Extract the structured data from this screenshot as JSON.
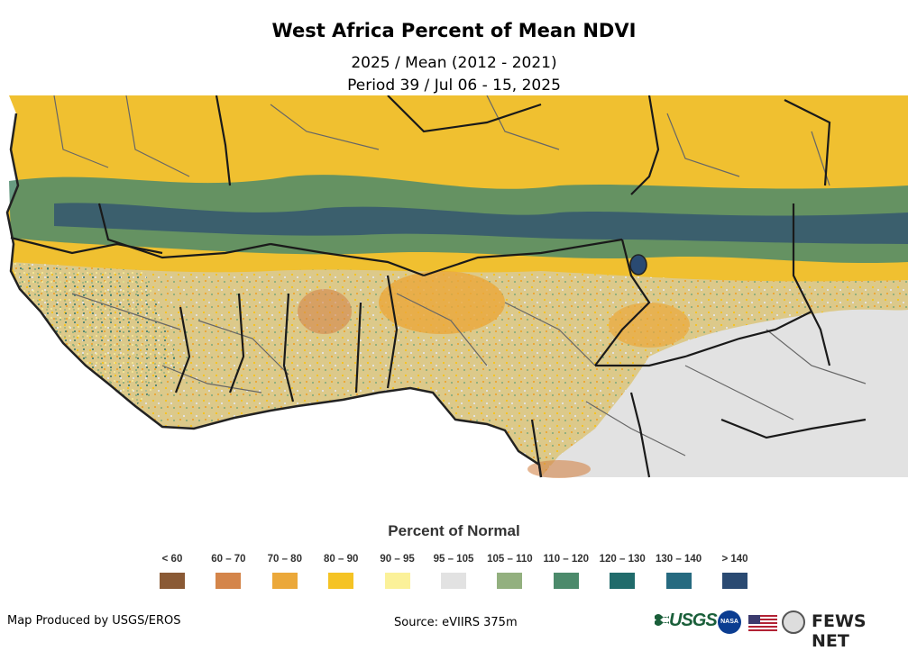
{
  "title": "West Africa Percent of Mean NDVI",
  "subtitle_line1": "2025 / Mean (2012 - 2021)",
  "subtitle_line2": "Period 39 / Jul 06 - 15, 2025",
  "legend": {
    "title": "Percent of Normal",
    "items": [
      {
        "label": "< 60",
        "color": "#8a5a35"
      },
      {
        "label": "60 – 70",
        "color": "#d4854a"
      },
      {
        "label": "70 – 80",
        "color": "#eba83a"
      },
      {
        "label": "80 – 90",
        "color": "#f5c324"
      },
      {
        "label": "90 – 95",
        "color": "#fbf199"
      },
      {
        "label": "95 – 105",
        "color": "#e2e2e2"
      },
      {
        "label": "105 – 110",
        "color": "#93b07f"
      },
      {
        "label": "110 – 120",
        "color": "#4c8a6b"
      },
      {
        "label": "120 – 130",
        "color": "#216b6b"
      },
      {
        "label": "130 – 140",
        "color": "#266a80"
      },
      {
        "label": "> 140",
        "color": "#2a4a72"
      }
    ]
  },
  "footer": {
    "produced_by": "Map Produced by USGS/EROS",
    "source": "Source: eVIIRS 375m"
  },
  "logos": {
    "usgs": "USGS",
    "nasa": "NASA",
    "fews": "FEWS NET"
  },
  "icons": [
    "usgs-logo-icon",
    "nasa-logo-icon",
    "us-flag-icon",
    "state-dept-seal-icon"
  ]
}
